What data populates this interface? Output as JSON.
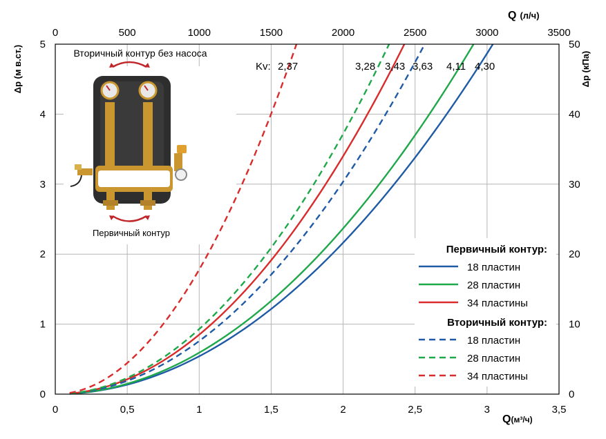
{
  "chart_data": {
    "type": "line",
    "x_top": {
      "label": "Q",
      "unit": "(л/ч)",
      "ticks": [
        "0",
        "500",
        "1000",
        "1500",
        "2000",
        "2500",
        "3000",
        "3500"
      ],
      "range": [
        0,
        3500
      ]
    },
    "x_bottom": {
      "label": "Q",
      "unit": "(м³/ч)",
      "ticks": [
        "0",
        "0,5",
        "1",
        "1,5",
        "2",
        "2,5",
        "3",
        "3,5"
      ],
      "range": [
        0,
        3.5
      ]
    },
    "y_left": {
      "label": "Δp (м в.ст.)",
      "ticks": [
        "0",
        "1",
        "2",
        "3",
        "4",
        "5"
      ],
      "range": [
        0,
        5
      ]
    },
    "y_right": {
      "label": "Δp (кПа)",
      "ticks": [
        "0",
        "10",
        "20",
        "30",
        "40",
        "50"
      ],
      "range": [
        0,
        50
      ]
    },
    "grid": true,
    "kv_label": "Kv:",
    "kv_values": [
      "2,37",
      "3,28",
      "3,43",
      "3,63",
      "4,11",
      "4,30"
    ],
    "legend": {
      "placement": "bottom-right",
      "groups": [
        {
          "title": "Первичный контур:",
          "items": [
            {
              "label": "18 пластин",
              "color": "#1f5aa6",
              "dash": false
            },
            {
              "label": "28 пластин",
              "color": "#1fa84a",
              "dash": false
            },
            {
              "label": "34 пластины",
              "color": "#d92b2b",
              "dash": false
            }
          ]
        },
        {
          "title": "Вторичный контур:",
          "items": [
            {
              "label": "18 пластин",
              "color": "#1f5aa6",
              "dash": true
            },
            {
              "label": "28 пластин",
              "color": "#1fa84a",
              "dash": true
            },
            {
              "label": "34 пластины",
              "color": "#d92b2b",
              "dash": true
            }
          ]
        }
      ]
    },
    "series": [
      {
        "kv": 4.3,
        "color": "#1f5aa6",
        "dash": false,
        "x": [
          0.1,
          0.5,
          1,
          1.5,
          2,
          2.5,
          3,
          3.05
        ],
        "y": [
          0.0005,
          0.14,
          0.54,
          1.22,
          2.16,
          3.38,
          4.87,
          5.0
        ]
      },
      {
        "kv": 4.11,
        "color": "#1fa84a",
        "dash": false,
        "x": [
          0.1,
          0.5,
          1,
          1.5,
          2,
          2.5,
          2.9
        ],
        "y": [
          0.0006,
          0.15,
          0.59,
          1.33,
          2.37,
          3.7,
          4.98
        ]
      },
      {
        "kv": 3.43,
        "color": "#d92b2b",
        "dash": false,
        "x": [
          0.1,
          0.5,
          1,
          1.5,
          2,
          2.43
        ],
        "y": [
          0.0009,
          0.21,
          0.85,
          1.91,
          3.4,
          5.0
        ]
      },
      {
        "kv": 3.63,
        "color": "#1f5aa6",
        "dash": true,
        "x": [
          0.1,
          0.5,
          1,
          1.5,
          2,
          2.5,
          2.57
        ],
        "y": [
          0.0008,
          0.19,
          0.76,
          1.71,
          3.04,
          4.74,
          5.0
        ]
      },
      {
        "kv": 3.28,
        "color": "#1fa84a",
        "dash": true,
        "x": [
          0.1,
          0.5,
          1,
          1.5,
          2,
          2.32
        ],
        "y": [
          0.0009,
          0.23,
          0.93,
          2.09,
          3.72,
          5.0
        ]
      },
      {
        "kv": 2.37,
        "color": "#d92b2b",
        "dash": true,
        "x": [
          0.1,
          0.5,
          1,
          1.5,
          1.68
        ],
        "y": [
          0.0018,
          0.45,
          1.78,
          4.0,
          5.0
        ]
      }
    ]
  },
  "image_labels": {
    "secondary_circuit": "Вторичный контур без насоса",
    "primary_circuit": "Первичный контур"
  },
  "colors": {
    "grid": "#b5b5b5",
    "module_body": "#2e2e2e",
    "brass": "#c9962f",
    "arrow": "#c0262a"
  }
}
